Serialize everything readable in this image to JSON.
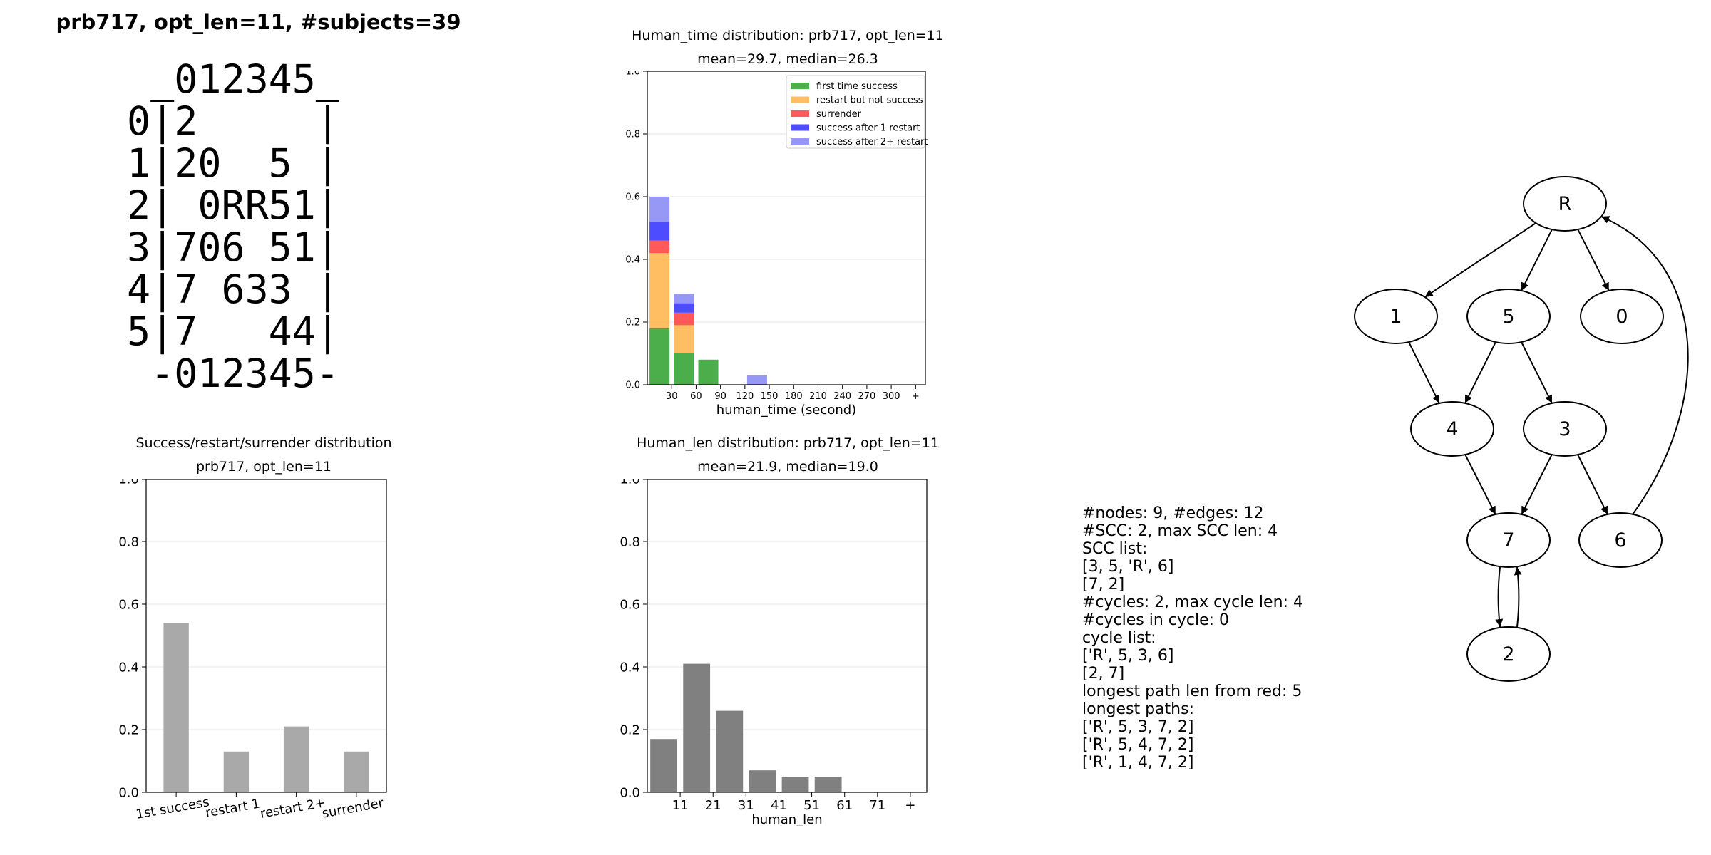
{
  "page_title": "prb717, opt_len=11, #subjects=39",
  "board_lines": [
    " _012345_",
    "0|2     |",
    "1|20  5 |",
    "2| 0RR51|",
    "3|706 51|",
    "4|7 633 |",
    "5|7   44|",
    " -012345-"
  ],
  "stats_lines": [
    "#nodes: 9, #edges: 12",
    "#SCC: 2, max SCC len: 4",
    "SCC list:",
    "[3, 5, 'R', 6]",
    "[7, 2]",
    "#cycles: 2, max cycle len: 4",
    "#cycles in cycle: 0",
    "cycle list:",
    "['R', 5, 3, 6]",
    "[2, 7]",
    "longest path len from red: 5",
    "longest paths:",
    "['R', 5, 3, 7, 2]",
    "['R', 5, 4, 7, 2]",
    "['R', 1, 4, 7, 2]"
  ],
  "graph": {
    "nodes": [
      "R",
      "1",
      "5",
      "0",
      "4",
      "3",
      "7",
      "6",
      "2"
    ],
    "edges": [
      [
        "R",
        "1"
      ],
      [
        "R",
        "5"
      ],
      [
        "R",
        "0"
      ],
      [
        "1",
        "4"
      ],
      [
        "5",
        "4"
      ],
      [
        "5",
        "3"
      ],
      [
        "4",
        "7"
      ],
      [
        "3",
        "7"
      ],
      [
        "3",
        "6"
      ],
      [
        "6",
        "R"
      ],
      [
        "7",
        "2"
      ],
      [
        "2",
        "7"
      ]
    ]
  },
  "colors": {
    "first_time_success": "#2ca02c",
    "restart_but_not_success": "#ffb347",
    "surrender": "#ff3030",
    "success_after_1_restart": "#2020ff",
    "success_after_2plus_restart": "#8c8cf5",
    "grey_bar": "#a9a9a9",
    "dark_grey_bar": "#808080"
  },
  "chart_data": [
    {
      "type": "bar",
      "stacked": true,
      "title": "Human_time distribution: prb717, opt_len=11",
      "subtitle": "mean=29.7, median=26.3",
      "xlabel": "human_time (second)",
      "ylabel": "",
      "categories": [
        "30",
        "60",
        "90",
        "120",
        "150",
        "180",
        "210",
        "240",
        "270",
        "300",
        "+"
      ],
      "ylim": [
        0,
        1.0
      ],
      "yticks": [
        "0.0",
        "0.2",
        "0.4",
        "0.6",
        "0.8",
        "1.0"
      ],
      "legend_position": "top-right",
      "grid": true,
      "series": [
        {
          "name": "first time success",
          "values": [
            0.18,
            0.1,
            0.08,
            0,
            0,
            0,
            0,
            0,
            0,
            0,
            0
          ]
        },
        {
          "name": "restart but not success",
          "values": [
            0.24,
            0.09,
            0,
            0,
            0,
            0,
            0,
            0,
            0,
            0,
            0
          ]
        },
        {
          "name": "surrender",
          "values": [
            0.04,
            0.04,
            0,
            0,
            0,
            0,
            0,
            0,
            0,
            0,
            0
          ]
        },
        {
          "name": "success after 1 restart",
          "values": [
            0.06,
            0.03,
            0,
            0,
            0,
            0,
            0,
            0,
            0,
            0,
            0
          ]
        },
        {
          "name": "success after 2+ restart",
          "values": [
            0.08,
            0.03,
            0,
            0,
            0.03,
            0,
            0,
            0,
            0,
            0,
            0
          ]
        }
      ]
    },
    {
      "type": "bar",
      "title": "Success/restart/surrender distribution",
      "subtitle": "prb717, opt_len=11",
      "xlabel": "",
      "ylabel": "",
      "categories": [
        "1st success",
        "restart 1",
        "restart 2+",
        "surrender"
      ],
      "values": [
        0.54,
        0.13,
        0.21,
        0.13
      ],
      "ylim": [
        0,
        1.0
      ],
      "yticks": [
        "0.0",
        "0.2",
        "0.4",
        "0.6",
        "0.8",
        "1.0"
      ],
      "grid": true
    },
    {
      "type": "bar",
      "title": "Human_len distribution: prb717, opt_len=11",
      "subtitle": "mean=21.9, median=19.0",
      "xlabel": "human_len",
      "ylabel": "",
      "categories": [
        "11",
        "21",
        "31",
        "41",
        "51",
        "61",
        "71",
        "+"
      ],
      "values": [
        0.17,
        0.41,
        0.26,
        0.07,
        0.05,
        0.05,
        0,
        0
      ],
      "ylim": [
        0,
        1.0
      ],
      "yticks": [
        "0.0",
        "0.2",
        "0.4",
        "0.6",
        "0.8",
        "1.0"
      ],
      "grid": true
    }
  ]
}
